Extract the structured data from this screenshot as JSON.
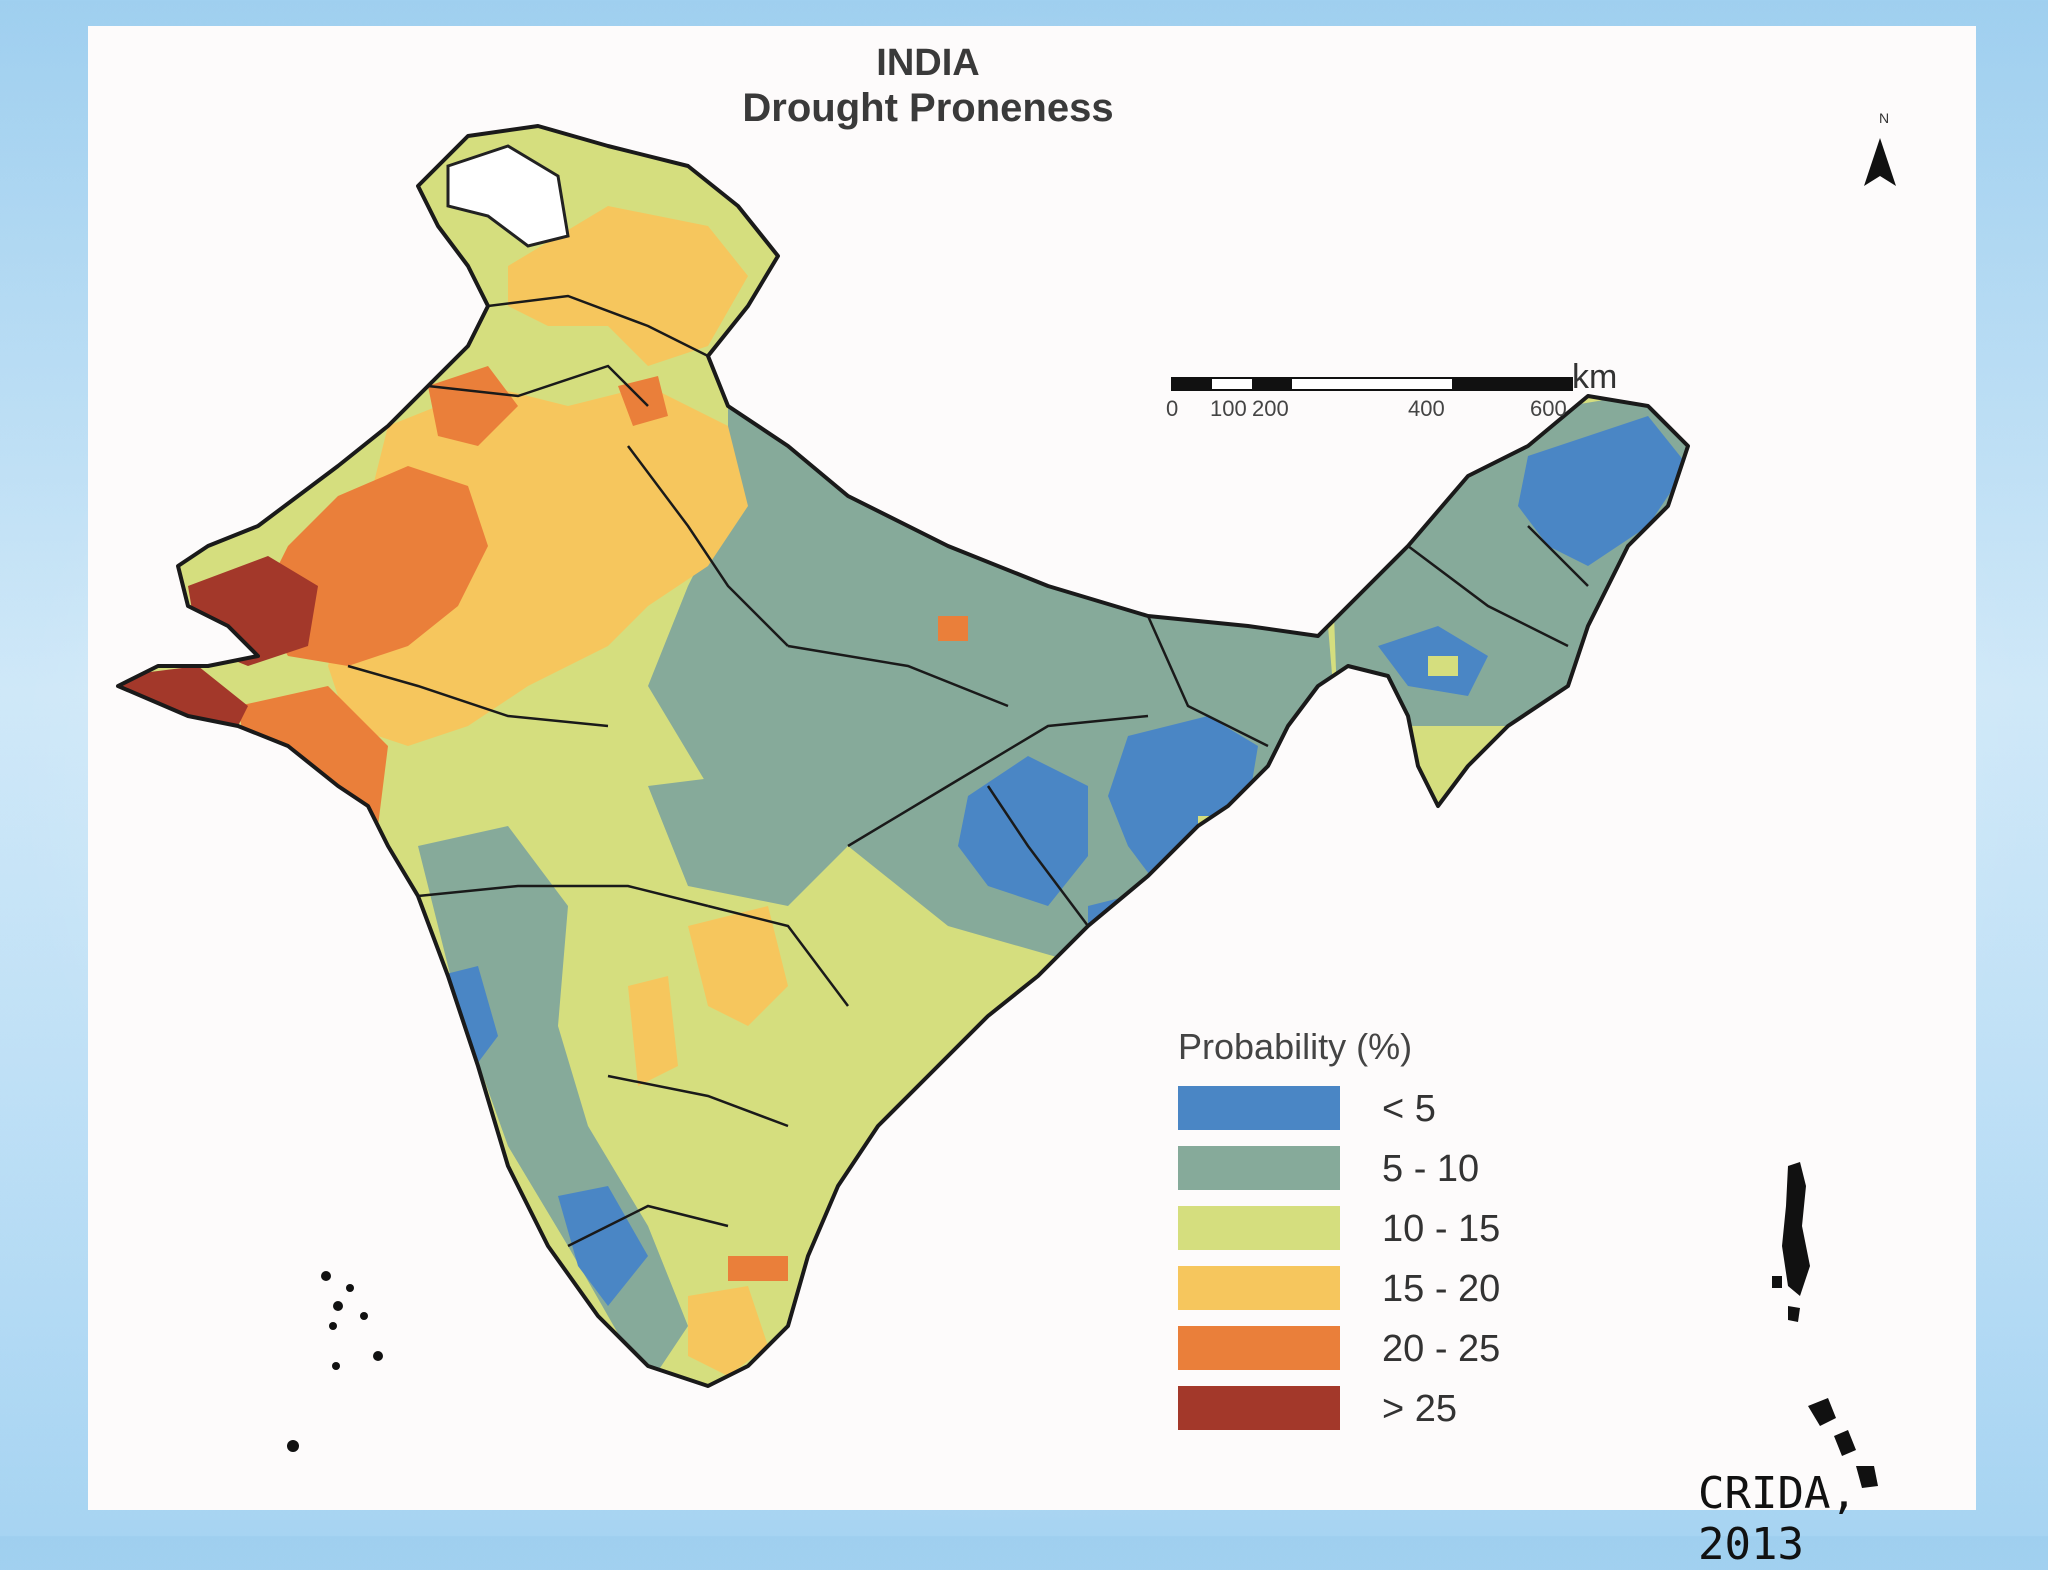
{
  "map": {
    "title_line1": "INDIA",
    "title_line2": "Drought Proneness",
    "north_label": "N",
    "scale_bar": {
      "unit": "km",
      "ticks": [
        "0",
        "100",
        "200",
        "400",
        "600"
      ]
    },
    "legend": {
      "title": "Probability (%)",
      "classes": [
        {
          "label": "< 5",
          "color": "#4a86c5"
        },
        {
          "label": "5 - 10",
          "color": "#86aa9a"
        },
        {
          "label": "10 - 15",
          "color": "#d5de7e"
        },
        {
          "label": "15 - 20",
          "color": "#f6c65d"
        },
        {
          "label": "20 - 25",
          "color": "#ea7f3a"
        },
        {
          "label": "> 25",
          "color": "#a3382a"
        }
      ]
    },
    "source": "CRIDA, 2013"
  }
}
